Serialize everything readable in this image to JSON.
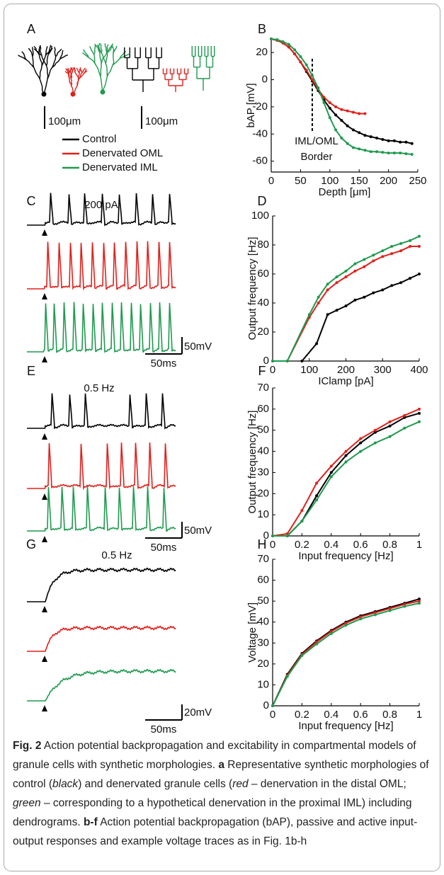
{
  "panel_labels": [
    "A",
    "B",
    "C",
    "D",
    "E",
    "F",
    "G",
    "H"
  ],
  "scale_bars_a": [
    "100μm",
    "100μm"
  ],
  "legend": [
    {
      "name": "Control",
      "color": "#000000"
    },
    {
      "name": "Denervated OML",
      "color": "#e0201b"
    },
    {
      "name": "Denervated IML",
      "color": "#1f9a4f"
    }
  ],
  "traces": [
    {
      "label": "200 pA",
      "amplitude_bar": "50mV",
      "time_bar": "50ms"
    },
    {
      "label": "0.5 Hz",
      "amplitude_bar": "50mV",
      "time_bar": "50ms"
    },
    {
      "label": "0.5 Hz",
      "amplitude_bar": "20mV",
      "time_bar": "50ms"
    }
  ],
  "chart_data": [
    {
      "type": "line",
      "xlabel": "Depth [μm]",
      "ylabel": "bAP [mV]",
      "xlim": [
        0,
        250
      ],
      "ylim": [
        -68,
        30
      ],
      "xticks": [
        0,
        50,
        100,
        150,
        200,
        250
      ],
      "yticks": [
        -60,
        -40,
        -20,
        0,
        20
      ],
      "vline_x": 70,
      "annotations": [
        "IML/OML",
        "Border"
      ],
      "series": [
        {
          "color": "#000000",
          "x": [
            0,
            10,
            20,
            30,
            40,
            50,
            60,
            70,
            80,
            90,
            100,
            110,
            120,
            130,
            140,
            150,
            160,
            170,
            180,
            190,
            200,
            210,
            220,
            230,
            240
          ],
          "values": [
            30,
            29,
            27,
            24,
            19,
            13,
            6,
            -1,
            -8,
            -15,
            -21,
            -26,
            -30,
            -34,
            -37,
            -39,
            -41,
            -42,
            -43,
            -44,
            -45,
            -45,
            -46,
            -46,
            -47
          ]
        },
        {
          "color": "#e0201b",
          "x": [
            0,
            10,
            20,
            30,
            40,
            50,
            60,
            70,
            80,
            90,
            100,
            110,
            120,
            130,
            140,
            150,
            160
          ],
          "values": [
            30,
            29,
            27,
            24,
            19,
            13,
            7,
            0,
            -7,
            -13,
            -17,
            -20,
            -22,
            -23,
            -24,
            -25,
            -25
          ]
        },
        {
          "color": "#1f9a4f",
          "x": [
            0,
            10,
            20,
            30,
            40,
            50,
            60,
            70,
            80,
            90,
            100,
            110,
            120,
            130,
            140,
            150,
            160,
            170,
            180,
            190,
            200,
            210,
            220,
            230,
            240
          ],
          "values": [
            30,
            29.5,
            28,
            26,
            22,
            17,
            11,
            3,
            -6,
            -17,
            -28,
            -37,
            -43,
            -47,
            -50,
            -51,
            -52,
            -53,
            -53,
            -53.5,
            -54,
            -54,
            -54,
            -54.5,
            -55
          ]
        }
      ]
    },
    {
      "type": "line",
      "xlabel": "IClamp [pA]",
      "ylabel": "Output frequency [Hz]",
      "xlim": [
        0,
        400
      ],
      "ylim": [
        0,
        100
      ],
      "xticks": [
        0,
        100,
        200,
        300,
        400
      ],
      "yticks": [
        0,
        20,
        40,
        60,
        80,
        100
      ],
      "series": [
        {
          "color": "#000000",
          "x": [
            80,
            120,
            150,
            175,
            200,
            225,
            250,
            275,
            300,
            325,
            350,
            375,
            400
          ],
          "values": [
            0,
            12,
            32,
            35,
            38,
            42,
            44,
            47,
            49,
            52,
            54,
            57,
            60
          ]
        },
        {
          "color": "#e0201b",
          "x": [
            0,
            40,
            100,
            125,
            150,
            175,
            200,
            225,
            250,
            275,
            300,
            325,
            350,
            375,
            400
          ],
          "values": [
            0,
            0,
            30,
            40,
            49,
            54,
            58,
            62,
            65,
            69,
            72,
            74,
            76,
            79,
            79
          ]
        },
        {
          "color": "#1f9a4f",
          "x": [
            0,
            40,
            100,
            125,
            150,
            175,
            200,
            225,
            250,
            275,
            300,
            325,
            350,
            375,
            400
          ],
          "values": [
            0,
            0,
            32,
            44,
            53,
            58,
            62,
            67,
            70,
            73,
            76,
            79,
            81,
            83,
            86
          ]
        }
      ]
    },
    {
      "type": "line",
      "xlabel": "Input frequency [Hz]",
      "ylabel": "Output frequency [Hz]",
      "xlim": [
        0,
        1
      ],
      "ylim": [
        0,
        70
      ],
      "xticks": [
        0,
        0.2,
        0.4,
        0.6,
        0.8,
        1
      ],
      "yticks": [
        0,
        10,
        20,
        30,
        40,
        50,
        60,
        70
      ],
      "series": [
        {
          "color": "#000000",
          "x": [
            0,
            0.1,
            0.2,
            0.3,
            0.4,
            0.5,
            0.6,
            0.7,
            0.8,
            0.9,
            1
          ],
          "values": [
            0,
            0,
            7,
            19,
            30,
            38,
            44,
            49,
            52,
            56,
            58
          ]
        },
        {
          "color": "#e0201b",
          "x": [
            0,
            0.1,
            0.2,
            0.3,
            0.4,
            0.5,
            0.6,
            0.7,
            0.8,
            0.9,
            1
          ],
          "values": [
            0,
            1,
            12,
            25,
            33,
            40,
            46,
            50,
            54,
            57,
            60
          ]
        },
        {
          "color": "#1f9a4f",
          "x": [
            0,
            0.1,
            0.2,
            0.3,
            0.4,
            0.5,
            0.6,
            0.7,
            0.8,
            0.9,
            1
          ],
          "values": [
            0,
            0,
            7,
            17,
            28,
            35,
            40,
            44,
            47,
            51,
            54
          ]
        }
      ]
    },
    {
      "type": "line",
      "xlabel": "Input frequency [Hz]",
      "ylabel": "Voltage [mV]",
      "xlim": [
        0,
        1
      ],
      "ylim": [
        0,
        70
      ],
      "xticks": [
        0,
        0.2,
        0.4,
        0.6,
        0.8,
        1
      ],
      "yticks": [
        0,
        10,
        20,
        30,
        40,
        50,
        60,
        70
      ],
      "series": [
        {
          "color": "#000000",
          "x": [
            0,
            0.1,
            0.2,
            0.3,
            0.4,
            0.5,
            0.6,
            0.7,
            0.8,
            0.9,
            1
          ],
          "values": [
            0,
            15,
            25,
            31,
            36,
            40,
            43,
            45,
            47,
            49,
            51
          ]
        },
        {
          "color": "#e0201b",
          "x": [
            0,
            0.1,
            0.2,
            0.3,
            0.4,
            0.5,
            0.6,
            0.7,
            0.8,
            0.9,
            1
          ],
          "values": [
            0,
            14.5,
            24.5,
            30.5,
            35.5,
            39.5,
            42.5,
            44.5,
            46.5,
            48.5,
            50
          ]
        },
        {
          "color": "#1f9a4f",
          "x": [
            0,
            0.1,
            0.2,
            0.3,
            0.4,
            0.5,
            0.6,
            0.7,
            0.8,
            0.9,
            1
          ],
          "values": [
            0,
            14,
            24,
            29.5,
            34.5,
            38.5,
            41.5,
            43.5,
            45.5,
            47.5,
            49
          ]
        }
      ]
    }
  ],
  "caption": {
    "runs": [
      "Fig. 2",
      " Action potential backpropagation and excitability in compartmental models of granule cells with synthetic morphologies. ",
      "a",
      " Representative synthetic morphologies of control (",
      "black",
      ") and denervated granule cells (",
      "red",
      " – denervation in the distal OML; ",
      "green",
      " – corresponding to a hypothetical denervation in the proximal IML) including dendrograms. ",
      "b",
      "-",
      "f",
      " Action potential backpropagation (bAP), passive and active input-output responses and example voltage traces as in Fig. 1b-h"
    ]
  }
}
